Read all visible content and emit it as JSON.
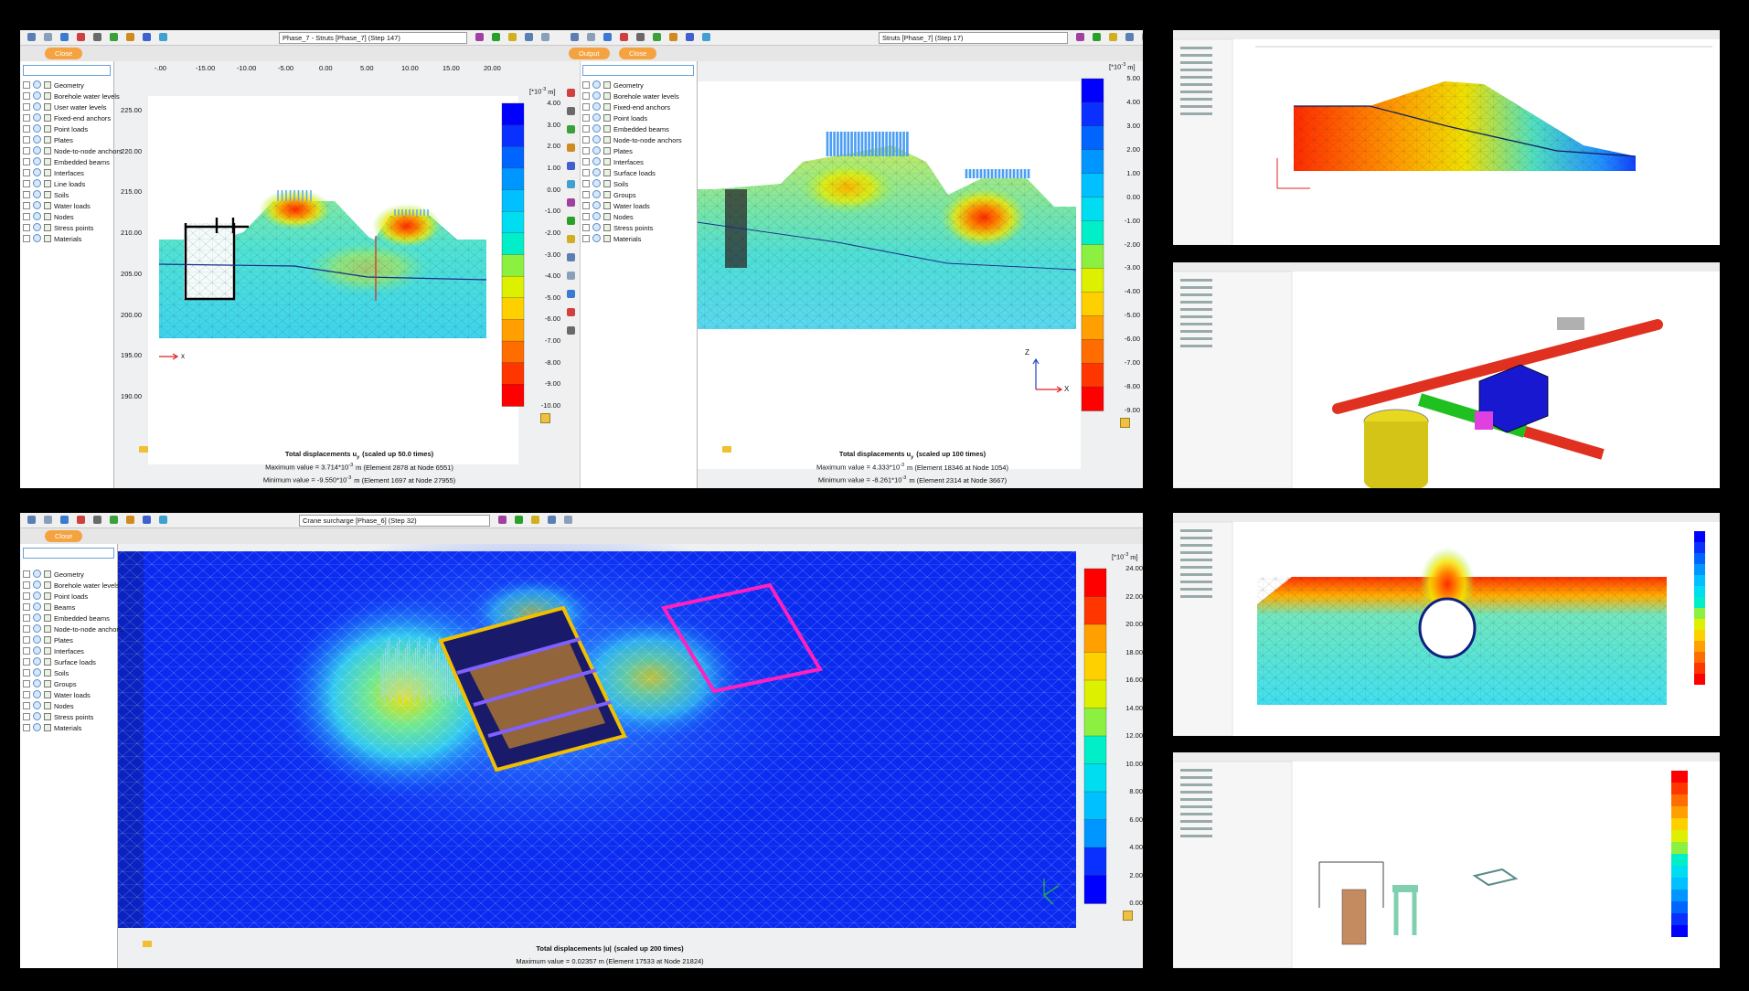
{
  "panels": [
    {
      "phase": "Phase_7 - Struts [Phase_7] (Step 147)",
      "close": "Close",
      "tree": [
        "Geometry",
        "Borehole water levels",
        "User water levels",
        "Fixed-end anchors",
        "Point loads",
        "Plates",
        "Node-to-node anchors",
        "Embedded beams",
        "Interfaces",
        "Line loads",
        "Soils",
        "Water loads",
        "Nodes",
        "Stress points",
        "Materials"
      ],
      "x_ticks": [
        "-.00",
        "-15.00",
        "-10.00",
        "-5.00",
        "0.00",
        "5.00",
        "10.00",
        "15.00",
        "20.00"
      ],
      "y_ticks": [
        "225.00",
        "220.00",
        "215.00",
        "210.00",
        "205.00",
        "200.00",
        "195.00",
        "190.00"
      ],
      "axis_labels": [
        "x"
      ],
      "legend_unit": {
        "pre": "[*10",
        "sup": "-3",
        "post": "m]"
      },
      "legend": [
        "4.00",
        "3.00",
        "2.00",
        "1.00",
        "0.00",
        "-1.00",
        "-2.00",
        "-3.00",
        "-4.00",
        "-5.00",
        "-6.00",
        "-7.00",
        "-8.00",
        "-9.00",
        "-10.00"
      ],
      "caption": {
        "title": {
          "text": "Total displacements u",
          "sub": "y",
          "rest": "(scaled up 50.0 times)"
        },
        "lines": [
          {
            "text": "Maximum value = 3.714*10",
            "sup": "-3",
            "rest": "m (Element 2878 at Node 6551)"
          },
          {
            "text": "Minimum value = -9.550*10",
            "sup": "-3",
            "rest": "m (Element 1697 at Node 27955)"
          }
        ]
      }
    },
    {
      "phase": "Struts [Phase_7] (Step 17)",
      "output": "Output",
      "close": "Close",
      "tree": [
        "Geometry",
        "Borehole water levels",
        "Fixed-end anchors",
        "Point loads",
        "Embedded beams",
        "Node-to-node anchors",
        "Plates",
        "Interfaces",
        "Surface loads",
        "Soils",
        "Groups",
        "Water loads",
        "Nodes",
        "Stress points",
        "Materials"
      ],
      "axis_labels": [
        "Z",
        "X"
      ],
      "legend_unit": {
        "pre": "[*10",
        "sup": "-3",
        "post": "m]"
      },
      "legend": [
        "5.00",
        "4.00",
        "3.00",
        "2.00",
        "1.00",
        "0.00",
        "-1.00",
        "-2.00",
        "-3.00",
        "-4.00",
        "-5.00",
        "-6.00",
        "-7.00",
        "-8.00",
        "-9.00"
      ],
      "caption": {
        "title": {
          "text": "Total displacements u",
          "sub": "y",
          "rest": "(scaled up 100 times)"
        },
        "lines": [
          {
            "text": "Maximum value = 4.333*10",
            "sup": "-3",
            "rest": "m (Element 18346 at Node 1054)"
          },
          {
            "text": "Minimum value = -8.261*10",
            "sup": "-3",
            "rest": "m (Element 2314 at Node 3667)"
          }
        ]
      }
    },
    {
      "phase": "Crane surcharge [Phase_6] (Step 32)",
      "close": "Close",
      "tree": [
        "Geometry",
        "Borehole water levels",
        "Point loads",
        "Beams",
        "Embedded beams",
        "Node-to-node anchors",
        "Plates",
        "Interfaces",
        "Surface loads",
        "Soils",
        "Groups",
        "Water loads",
        "Nodes",
        "Stress points",
        "Materials"
      ],
      "legend_unit": {
        "pre": "[*10",
        "sup": "-3",
        "post": "m]"
      },
      "legend": [
        "24.00",
        "22.00",
        "20.00",
        "18.00",
        "16.00",
        "14.00",
        "12.00",
        "10.00",
        "8.00",
        "6.00",
        "4.00",
        "2.00",
        "0.00"
      ],
      "caption": {
        "title": {
          "text": "Total displacements |u|",
          "rest": "(scaled up 200 times)"
        },
        "lines": [
          {
            "text": "Maximum value = 0.02357 m (Element 17533 at Node 21824)"
          }
        ]
      }
    }
  ]
}
